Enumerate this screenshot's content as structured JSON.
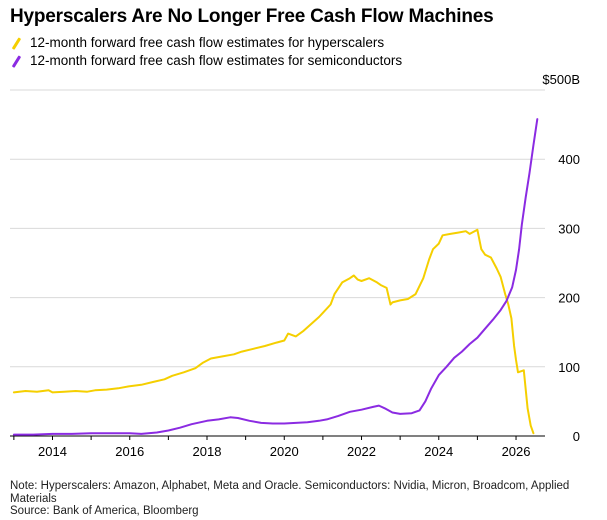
{
  "title": "Hyperscalers Are No Longer Free Cash Flow Machines",
  "footer": {
    "note": "Note: Hyperscalers: Amazon, Alphabet, Meta and Oracle. Semiconductors: Nvidia, Micron, Broadcom, Applied Materials",
    "source": "Source: Bank of America, Bloomberg"
  },
  "chart_data": {
    "type": "line",
    "title": "Hyperscalers Are No Longer Free Cash Flow Machines",
    "xlabel": "",
    "ylabel": "",
    "xlim": [
      2012.9,
      2026.75
    ],
    "ylim": [
      0,
      500
    ],
    "x_ticks": [
      2014,
      2016,
      2018,
      2020,
      2022,
      2024,
      2026
    ],
    "x_tick_labels": [
      "2014",
      "2016",
      "2018",
      "2020",
      "2022",
      "2024",
      "2026"
    ],
    "y_ticks": [
      0,
      100,
      200,
      300,
      400,
      500
    ],
    "y_tick_labels": [
      "0",
      "100",
      "200",
      "300",
      "400",
      "$500B"
    ],
    "grid": "horizontal",
    "legend_position": "top-left",
    "series": [
      {
        "name": "12-month forward free cash flow estimates for hyperscalers",
        "color": "#f5cf00",
        "points": [
          [
            2013.0,
            63
          ],
          [
            2013.3,
            65
          ],
          [
            2013.6,
            64
          ],
          [
            2013.9,
            66
          ],
          [
            2014.0,
            63
          ],
          [
            2014.3,
            64
          ],
          [
            2014.6,
            65
          ],
          [
            2014.9,
            64
          ],
          [
            2015.1,
            66
          ],
          [
            2015.4,
            67
          ],
          [
            2015.7,
            69
          ],
          [
            2016.0,
            72
          ],
          [
            2016.3,
            74
          ],
          [
            2016.6,
            78
          ],
          [
            2016.9,
            82
          ],
          [
            2017.1,
            87
          ],
          [
            2017.4,
            92
          ],
          [
            2017.7,
            98
          ],
          [
            2017.9,
            106
          ],
          [
            2018.1,
            112
          ],
          [
            2018.4,
            115
          ],
          [
            2018.7,
            118
          ],
          [
            2018.9,
            122
          ],
          [
            2019.2,
            126
          ],
          [
            2019.5,
            130
          ],
          [
            2019.8,
            135
          ],
          [
            2020.0,
            138
          ],
          [
            2020.1,
            148
          ],
          [
            2020.3,
            144
          ],
          [
            2020.5,
            152
          ],
          [
            2020.7,
            162
          ],
          [
            2020.9,
            172
          ],
          [
            2021.0,
            178
          ],
          [
            2021.2,
            190
          ],
          [
            2021.3,
            205
          ],
          [
            2021.5,
            222
          ],
          [
            2021.7,
            228
          ],
          [
            2021.8,
            232
          ],
          [
            2021.9,
            226
          ],
          [
            2022.0,
            224
          ],
          [
            2022.2,
            228
          ],
          [
            2022.4,
            222
          ],
          [
            2022.5,
            218
          ],
          [
            2022.65,
            214
          ],
          [
            2022.75,
            190
          ],
          [
            2022.8,
            193
          ],
          [
            2023.0,
            196
          ],
          [
            2023.2,
            198
          ],
          [
            2023.4,
            205
          ],
          [
            2023.6,
            228
          ],
          [
            2023.75,
            255
          ],
          [
            2023.85,
            270
          ],
          [
            2024.0,
            278
          ],
          [
            2024.1,
            290
          ],
          [
            2024.3,
            292
          ],
          [
            2024.5,
            294
          ],
          [
            2024.7,
            296
          ],
          [
            2024.8,
            292
          ],
          [
            2025.0,
            298
          ],
          [
            2025.1,
            270
          ],
          [
            2025.2,
            262
          ],
          [
            2025.35,
            258
          ],
          [
            2025.5,
            242
          ],
          [
            2025.6,
            230
          ],
          [
            2025.72,
            205
          ],
          [
            2025.8,
            190
          ],
          [
            2025.88,
            170
          ],
          [
            2025.95,
            130
          ],
          [
            2026.0,
            110
          ],
          [
            2026.05,
            92
          ],
          [
            2026.2,
            95
          ],
          [
            2026.3,
            40
          ],
          [
            2026.38,
            15
          ],
          [
            2026.45,
            4
          ]
        ]
      },
      {
        "name": "12-month forward free cash flow estimates for semiconductors",
        "color": "#8b2be2",
        "points": [
          [
            2013.0,
            2
          ],
          [
            2013.5,
            2
          ],
          [
            2014.0,
            3
          ],
          [
            2014.5,
            3
          ],
          [
            2015.0,
            4
          ],
          [
            2015.5,
            4
          ],
          [
            2016.0,
            4
          ],
          [
            2016.3,
            3
          ],
          [
            2016.7,
            5
          ],
          [
            2017.0,
            8
          ],
          [
            2017.3,
            12
          ],
          [
            2017.6,
            17
          ],
          [
            2018.0,
            22
          ],
          [
            2018.3,
            24
          ],
          [
            2018.6,
            27
          ],
          [
            2018.8,
            26
          ],
          [
            2019.1,
            22
          ],
          [
            2019.4,
            19
          ],
          [
            2019.7,
            18
          ],
          [
            2020.0,
            18
          ],
          [
            2020.3,
            19
          ],
          [
            2020.6,
            20
          ],
          [
            2020.9,
            22
          ],
          [
            2021.1,
            24
          ],
          [
            2021.4,
            29
          ],
          [
            2021.7,
            35
          ],
          [
            2022.0,
            38
          ],
          [
            2022.3,
            42
          ],
          [
            2022.45,
            44
          ],
          [
            2022.6,
            40
          ],
          [
            2022.8,
            34
          ],
          [
            2023.0,
            32
          ],
          [
            2023.3,
            33
          ],
          [
            2023.5,
            37
          ],
          [
            2023.65,
            50
          ],
          [
            2023.8,
            68
          ],
          [
            2024.0,
            88
          ],
          [
            2024.2,
            100
          ],
          [
            2024.4,
            113
          ],
          [
            2024.6,
            122
          ],
          [
            2024.8,
            133
          ],
          [
            2025.0,
            142
          ],
          [
            2025.2,
            155
          ],
          [
            2025.4,
            168
          ],
          [
            2025.6,
            182
          ],
          [
            2025.75,
            195
          ],
          [
            2025.9,
            215
          ],
          [
            2026.0,
            240
          ],
          [
            2026.08,
            270
          ],
          [
            2026.15,
            305
          ],
          [
            2026.25,
            345
          ],
          [
            2026.35,
            380
          ],
          [
            2026.45,
            420
          ],
          [
            2026.55,
            458
          ]
        ]
      }
    ]
  }
}
